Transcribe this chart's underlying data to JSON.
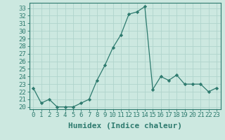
{
  "x": [
    0,
    1,
    2,
    3,
    4,
    5,
    6,
    7,
    8,
    9,
    10,
    11,
    12,
    13,
    14,
    15,
    16,
    17,
    18,
    19,
    20,
    21,
    22,
    23
  ],
  "y": [
    22.5,
    20.5,
    21.0,
    20.0,
    20.0,
    20.0,
    20.5,
    21.0,
    23.5,
    25.5,
    27.8,
    29.5,
    32.2,
    32.5,
    33.2,
    22.3,
    24.0,
    23.5,
    24.2,
    23.0,
    23.0,
    23.0,
    22.0,
    22.5
  ],
  "line_color": "#2d7a6e",
  "marker": "D",
  "marker_size": 2.2,
  "bg_color": "#cce8e0",
  "grid_color": "#b0d4cc",
  "xlabel": "Humidex (Indice chaleur)",
  "xlim": [
    -0.5,
    23.5
  ],
  "ylim": [
    19.7,
    33.7
  ],
  "yticks": [
    20,
    21,
    22,
    23,
    24,
    25,
    26,
    27,
    28,
    29,
    30,
    31,
    32,
    33
  ],
  "xticks": [
    0,
    1,
    2,
    3,
    4,
    5,
    6,
    7,
    8,
    9,
    10,
    11,
    12,
    13,
    14,
    15,
    16,
    17,
    18,
    19,
    20,
    21,
    22,
    23
  ],
  "xtick_labels": [
    "0",
    "1",
    "2",
    "3",
    "4",
    "5",
    "6",
    "7",
    "8",
    "9",
    "10",
    "11",
    "12",
    "13",
    "14",
    "15",
    "16",
    "17",
    "18",
    "19",
    "20",
    "21",
    "22",
    "23"
  ],
  "tick_fontsize": 6.5,
  "label_fontsize": 8
}
